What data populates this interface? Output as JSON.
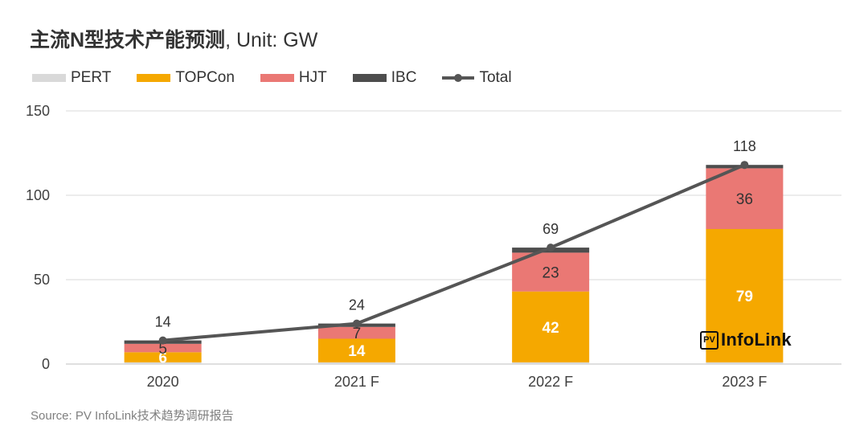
{
  "title": {
    "main": "主流N型技术产能预测",
    "unit": ", Unit: GW"
  },
  "source": "Source: PV InfoLink技术趋势调研报告",
  "logo": {
    "mark": "PV",
    "text": "InfoLink"
  },
  "colors": {
    "PERT": "#d9d9d9",
    "TOPCon": "#f5a800",
    "HJT": "#ea7874",
    "IBC": "#4d4d4d",
    "Total": "#555555"
  },
  "chart_data": {
    "type": "bar",
    "stacked": true,
    "title": "主流N型技术产能预测, Unit: GW",
    "xlabel": "",
    "ylabel": "",
    "categories": [
      "2020",
      "2021 F",
      "2022 F",
      "2023 F"
    ],
    "ylim": [
      0,
      150
    ],
    "yticks": [
      0,
      50,
      100,
      150
    ],
    "grid": true,
    "legend_position": "top-left",
    "series": [
      {
        "name": "PERT",
        "type": "bar",
        "values": [
          1,
          1,
          1,
          1
        ],
        "labels": [
          "",
          "",
          "",
          ""
        ]
      },
      {
        "name": "TOPCon",
        "type": "bar",
        "values": [
          6,
          14,
          42,
          79
        ],
        "labels": [
          "6",
          "14",
          "42",
          "79"
        ]
      },
      {
        "name": "HJT",
        "type": "bar",
        "values": [
          5,
          7,
          23,
          36
        ],
        "labels": [
          "5",
          "7",
          "23",
          "36"
        ]
      },
      {
        "name": "IBC",
        "type": "bar",
        "values": [
          2,
          2,
          3,
          2
        ],
        "labels": [
          "",
          "",
          "",
          ""
        ]
      },
      {
        "name": "Total",
        "type": "line",
        "values": [
          14,
          24,
          69,
          118
        ],
        "labels": [
          "14",
          "24",
          "69",
          "118"
        ]
      }
    ]
  }
}
